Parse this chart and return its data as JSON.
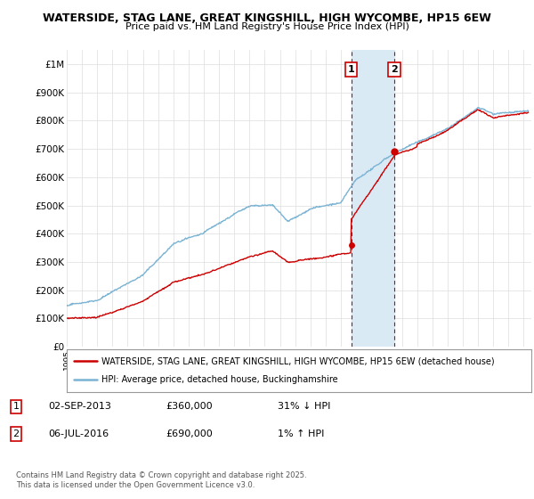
{
  "title1": "WATERSIDE, STAG LANE, GREAT KINGSHILL, HIGH WYCOMBE, HP15 6EW",
  "title2": "Price paid vs. HM Land Registry's House Price Index (HPI)",
  "xlim": [
    1995,
    2025.5
  ],
  "ylim": [
    0,
    1050000
  ],
  "yticks": [
    0,
    100000,
    200000,
    300000,
    400000,
    500000,
    600000,
    700000,
    800000,
    900000,
    1000000
  ],
  "ytick_labels": [
    "£0",
    "£100K",
    "£200K",
    "£300K",
    "£400K",
    "£500K",
    "£600K",
    "£700K",
    "£800K",
    "£900K",
    "£1M"
  ],
  "hpi_color": "#7ab3d4",
  "price_color": "#cc0000",
  "transaction1_date": 2013.67,
  "transaction1_price": 360000,
  "transaction2_date": 2016.51,
  "transaction2_price": 690000,
  "shade_color": "#daeaf5",
  "vline_color": "#cc0000",
  "legend_entry1": "WATERSIDE, STAG LANE, GREAT KINGSHILL, HIGH WYCOMBE, HP15 6EW (detached house)",
  "legend_entry2": "HPI: Average price, detached house, Buckinghamshire",
  "footer1": "Contains HM Land Registry data © Crown copyright and database right 2025.",
  "footer2": "This data is licensed under the Open Government Licence v3.0.",
  "annotation1_date": "02-SEP-2013",
  "annotation1_price": "£360,000",
  "annotation1_hpi": "31% ↓ HPI",
  "annotation2_date": "06-JUL-2016",
  "annotation2_price": "£690,000",
  "annotation2_hpi": "1% ↑ HPI",
  "background_color": "#ffffff",
  "grid_color": "#dddddd"
}
